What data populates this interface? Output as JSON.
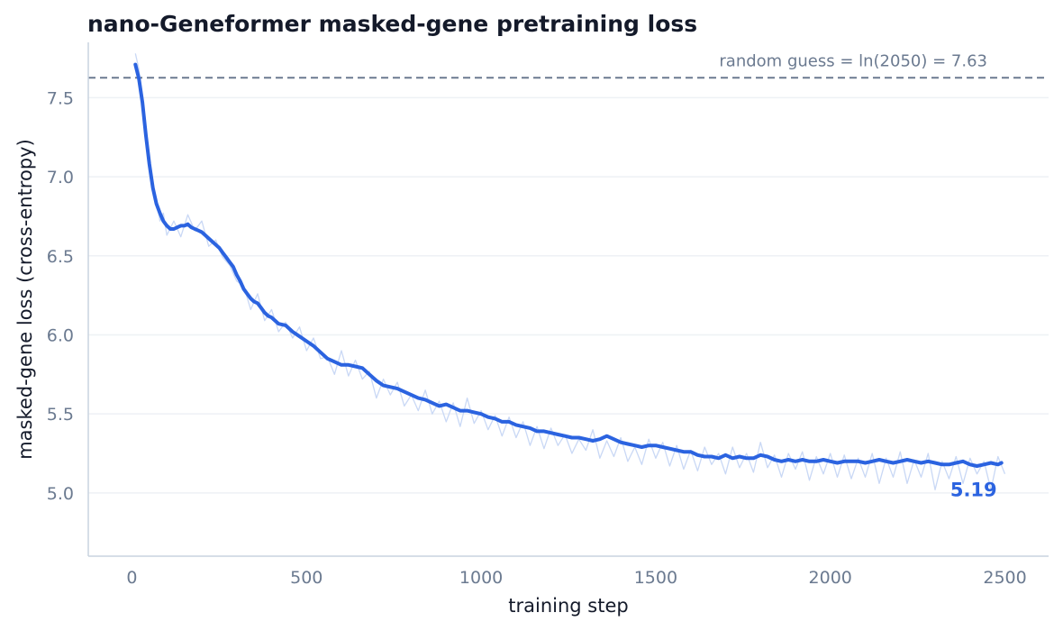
{
  "chart_data": {
    "type": "line",
    "title": "nano-Geneformer masked-gene pretraining loss",
    "xlabel": "training step",
    "ylabel": "masked-gene loss (cross-entropy)",
    "xlim": [
      -125,
      2625
    ],
    "ylim": [
      4.6,
      7.85
    ],
    "xticks": [
      0,
      500,
      1000,
      1500,
      2000,
      2500
    ],
    "yticks": [
      5.0,
      5.5,
      6.0,
      6.5,
      7.0,
      7.5
    ],
    "xtick_labels": [
      "0",
      "500",
      "1000",
      "1500",
      "2000",
      "2500"
    ],
    "ytick_labels": [
      "5.0",
      "5.5",
      "6.0",
      "6.5",
      "7.0",
      "7.5"
    ],
    "grid": "horizontal",
    "reference_line": {
      "y": 7.626,
      "label": "random guess = ln(2050) = 7.63",
      "style": "dashed"
    },
    "final_annotation": {
      "x": 2490,
      "y": 5.19,
      "label": "5.19"
    },
    "series": [
      {
        "role": "raw",
        "color": "#c9d8f5",
        "x": [
          10,
          20,
          30,
          40,
          50,
          60,
          70,
          80,
          90,
          100,
          120,
          140,
          160,
          180,
          200,
          220,
          240,
          260,
          280,
          300,
          320,
          340,
          360,
          380,
          400,
          420,
          440,
          460,
          480,
          500,
          520,
          540,
          560,
          580,
          600,
          620,
          640,
          660,
          680,
          700,
          720,
          740,
          760,
          780,
          800,
          820,
          840,
          860,
          880,
          900,
          920,
          940,
          960,
          980,
          1000,
          1020,
          1040,
          1060,
          1080,
          1100,
          1120,
          1140,
          1160,
          1180,
          1200,
          1220,
          1240,
          1260,
          1280,
          1300,
          1320,
          1340,
          1360,
          1380,
          1400,
          1420,
          1440,
          1460,
          1480,
          1500,
          1520,
          1540,
          1560,
          1580,
          1600,
          1620,
          1640,
          1660,
          1680,
          1700,
          1720,
          1740,
          1760,
          1780,
          1800,
          1820,
          1840,
          1860,
          1880,
          1900,
          1920,
          1940,
          1960,
          1980,
          2000,
          2020,
          2040,
          2060,
          2080,
          2100,
          2120,
          2140,
          2160,
          2180,
          2200,
          2220,
          2240,
          2260,
          2280,
          2300,
          2320,
          2340,
          2360,
          2380,
          2400,
          2420,
          2440,
          2460,
          2480,
          2500
        ],
        "y": [
          7.78,
          7.68,
          7.5,
          7.3,
          7.12,
          6.95,
          6.86,
          6.72,
          6.77,
          6.63,
          6.72,
          6.62,
          6.76,
          6.66,
          6.72,
          6.56,
          6.6,
          6.49,
          6.44,
          6.34,
          6.31,
          6.16,
          6.26,
          6.09,
          6.16,
          6.02,
          6.08,
          5.98,
          6.05,
          5.9,
          5.98,
          5.85,
          5.86,
          5.75,
          5.9,
          5.74,
          5.84,
          5.72,
          5.77,
          5.6,
          5.72,
          5.62,
          5.7,
          5.55,
          5.62,
          5.52,
          5.65,
          5.5,
          5.58,
          5.45,
          5.57,
          5.42,
          5.6,
          5.44,
          5.52,
          5.4,
          5.49,
          5.36,
          5.48,
          5.35,
          5.45,
          5.3,
          5.42,
          5.28,
          5.41,
          5.3,
          5.37,
          5.25,
          5.34,
          5.27,
          5.4,
          5.22,
          5.33,
          5.23,
          5.35,
          5.2,
          5.29,
          5.18,
          5.34,
          5.22,
          5.32,
          5.17,
          5.3,
          5.15,
          5.27,
          5.14,
          5.29,
          5.18,
          5.25,
          5.12,
          5.29,
          5.16,
          5.25,
          5.13,
          5.32,
          5.16,
          5.24,
          5.1,
          5.25,
          5.15,
          5.26,
          5.08,
          5.23,
          5.12,
          5.25,
          5.1,
          5.24,
          5.09,
          5.22,
          5.1,
          5.25,
          5.06,
          5.22,
          5.1,
          5.26,
          5.06,
          5.21,
          5.1,
          5.25,
          5.02,
          5.2,
          5.09,
          5.23,
          5.06,
          5.22,
          5.12,
          5.2,
          5.02,
          5.23,
          5.12
        ]
      },
      {
        "role": "smoothed",
        "color": "#2b63e0",
        "x": [
          10,
          20,
          30,
          40,
          50,
          60,
          70,
          80,
          90,
          100,
          110,
          120,
          130,
          140,
          150,
          160,
          170,
          180,
          190,
          200,
          210,
          220,
          230,
          240,
          250,
          260,
          270,
          280,
          290,
          300,
          310,
          320,
          330,
          340,
          350,
          360,
          370,
          380,
          390,
          400,
          420,
          440,
          460,
          480,
          500,
          520,
          540,
          560,
          580,
          600,
          620,
          640,
          660,
          680,
          700,
          720,
          740,
          760,
          780,
          800,
          820,
          840,
          860,
          880,
          900,
          920,
          940,
          960,
          980,
          1000,
          1020,
          1040,
          1060,
          1080,
          1100,
          1120,
          1140,
          1160,
          1180,
          1200,
          1220,
          1240,
          1260,
          1280,
          1300,
          1320,
          1340,
          1360,
          1380,
          1400,
          1420,
          1440,
          1460,
          1480,
          1500,
          1520,
          1540,
          1560,
          1580,
          1600,
          1620,
          1640,
          1660,
          1680,
          1700,
          1720,
          1740,
          1760,
          1780,
          1800,
          1820,
          1840,
          1860,
          1880,
          1900,
          1920,
          1940,
          1960,
          1980,
          2000,
          2020,
          2040,
          2060,
          2080,
          2100,
          2120,
          2140,
          2160,
          2180,
          2200,
          2220,
          2240,
          2260,
          2280,
          2300,
          2320,
          2340,
          2360,
          2380,
          2400,
          2420,
          2440,
          2460,
          2480,
          2490
        ],
        "y": [
          7.71,
          7.62,
          7.47,
          7.26,
          7.08,
          6.93,
          6.83,
          6.77,
          6.72,
          6.69,
          6.67,
          6.67,
          6.68,
          6.69,
          6.69,
          6.7,
          6.68,
          6.67,
          6.66,
          6.65,
          6.63,
          6.61,
          6.59,
          6.57,
          6.55,
          6.52,
          6.49,
          6.46,
          6.43,
          6.38,
          6.34,
          6.29,
          6.26,
          6.23,
          6.21,
          6.2,
          6.17,
          6.14,
          6.12,
          6.11,
          6.07,
          6.06,
          6.02,
          5.99,
          5.96,
          5.93,
          5.89,
          5.85,
          5.83,
          5.81,
          5.81,
          5.8,
          5.79,
          5.75,
          5.71,
          5.68,
          5.67,
          5.66,
          5.64,
          5.62,
          5.6,
          5.59,
          5.57,
          5.55,
          5.56,
          5.54,
          5.52,
          5.52,
          5.51,
          5.5,
          5.48,
          5.47,
          5.45,
          5.45,
          5.43,
          5.42,
          5.41,
          5.39,
          5.39,
          5.38,
          5.37,
          5.36,
          5.35,
          5.35,
          5.34,
          5.33,
          5.34,
          5.36,
          5.34,
          5.32,
          5.31,
          5.3,
          5.29,
          5.3,
          5.3,
          5.29,
          5.28,
          5.27,
          5.26,
          5.26,
          5.24,
          5.23,
          5.23,
          5.22,
          5.24,
          5.22,
          5.23,
          5.22,
          5.22,
          5.24,
          5.23,
          5.21,
          5.2,
          5.21,
          5.2,
          5.21,
          5.2,
          5.2,
          5.21,
          5.2,
          5.19,
          5.2,
          5.2,
          5.2,
          5.19,
          5.2,
          5.21,
          5.2,
          5.19,
          5.2,
          5.21,
          5.2,
          5.19,
          5.2,
          5.19,
          5.18,
          5.18,
          5.19,
          5.2,
          5.18,
          5.17,
          5.18,
          5.19,
          5.18,
          5.19
        ]
      }
    ]
  },
  "colors": {
    "line": "#2b63e0",
    "raw": "#c9d8f5",
    "reference": "#6b7a90",
    "axis": "#c9d3df",
    "grid": "#eef1f5"
  }
}
